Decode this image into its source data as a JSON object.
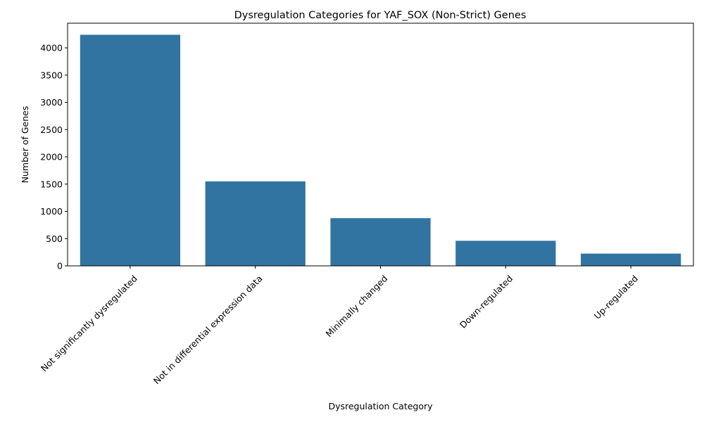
{
  "chart_data": {
    "type": "bar",
    "title": "Dysregulation Categories for YAF_SOX (Non-Strict) Genes",
    "xlabel": "Dysregulation Category",
    "ylabel": "Number of Genes",
    "categories": [
      "Not significantly dysregulated",
      "Not in differential expression data",
      "Minimally changed",
      "Down-regulated",
      "Up-regulated"
    ],
    "values": [
      4240,
      1550,
      875,
      460,
      225
    ],
    "ylim": [
      0,
      4452
    ],
    "yticks": [
      0,
      500,
      1000,
      1500,
      2000,
      2500,
      3000,
      3500,
      4000
    ],
    "grid": false,
    "legend": "none",
    "bar_color": "#3274a1"
  }
}
